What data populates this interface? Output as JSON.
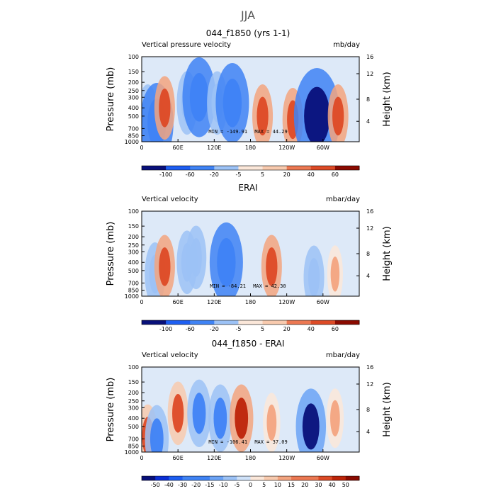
{
  "page_title": "JJA",
  "x_ticks": [
    "0",
    "60E",
    "120E",
    "180",
    "120W",
    "60W"
  ],
  "y_left_ticks": [
    "100",
    "150",
    "200",
    "250",
    "300",
    "400",
    "500",
    "700",
    "850",
    "1000"
  ],
  "y_right_ticks": [
    "16",
    "12",
    "8",
    "4"
  ],
  "y_left_label": "Pressure (mb)",
  "y_right_label": "Height (km)",
  "colors": {
    "palette": [
      "#08107a",
      "#0a2ed6",
      "#1d5ef2",
      "#3f83f5",
      "#6ba3f6",
      "#9cc2f6",
      "#cfe2f9",
      "#fbe7d9",
      "#f8caae",
      "#f3a47f",
      "#ec7852",
      "#dd4a26",
      "#bd2409",
      "#8b0a00"
    ]
  },
  "chart_data": [
    {
      "type": "heatmap",
      "title": "044_f1850 (yrs 1-1)",
      "variable": "Vertical pressure velocity",
      "units": "mb/day",
      "x": [
        "0",
        "60E",
        "120E",
        "180",
        "120W",
        "60W"
      ],
      "y": [
        100,
        150,
        200,
        250,
        300,
        400,
        500,
        700,
        850,
        1000
      ],
      "min_label": "MIN = -149.91",
      "max_label": "MAX = 44.29",
      "min": -149.91,
      "max": 44.29,
      "colorbar_labels": [
        "-100",
        "-60",
        "-20",
        "-5",
        "5",
        "20",
        "40",
        "60"
      ],
      "features": [
        {
          "lon": 10,
          "p": 500,
          "value": -20
        },
        {
          "lon": 25,
          "p": 600,
          "value": -60
        },
        {
          "lon": 38,
          "p": 400,
          "value": 20
        },
        {
          "lon": 75,
          "p": 350,
          "value": -20
        },
        {
          "lon": 95,
          "p": 300,
          "value": -60
        },
        {
          "lon": 125,
          "p": 350,
          "value": -20
        },
        {
          "lon": 150,
          "p": 350,
          "value": -60
        },
        {
          "lon": 200,
          "p": 500,
          "value": 20
        },
        {
          "lon": 250,
          "p": 550,
          "value": 20
        },
        {
          "lon": 290,
          "p": 500,
          "value": -100
        },
        {
          "lon": 325,
          "p": 500,
          "value": 20
        }
      ]
    },
    {
      "type": "heatmap",
      "title": "ERAI",
      "variable": "Vertical velocity",
      "units": "mbar/day",
      "x": [
        "0",
        "60E",
        "120E",
        "180",
        "120W",
        "60W"
      ],
      "y": [
        100,
        150,
        200,
        250,
        300,
        400,
        500,
        700,
        850,
        1000
      ],
      "min_label": "MIN = -84.21",
      "max_label": "MAX = 42.30",
      "min": -84.21,
      "max": 42.3,
      "colorbar_labels": [
        "-100",
        "-60",
        "-20",
        "-5",
        "5",
        "20",
        "40",
        "60"
      ],
      "features": [
        {
          "lon": 22,
          "p": 550,
          "value": -20
        },
        {
          "lon": 38,
          "p": 450,
          "value": 20
        },
        {
          "lon": 75,
          "p": 400,
          "value": -20
        },
        {
          "lon": 90,
          "p": 350,
          "value": -20
        },
        {
          "lon": 140,
          "p": 400,
          "value": -60
        },
        {
          "lon": 215,
          "p": 450,
          "value": 20
        },
        {
          "lon": 285,
          "p": 600,
          "value": -20
        },
        {
          "lon": 320,
          "p": 550,
          "value": 5
        }
      ]
    },
    {
      "type": "heatmap",
      "title": "044_f1850 - ERAI",
      "variable": "Vertical velocity",
      "units": "mbar/day",
      "x": [
        "0",
        "60E",
        "120E",
        "180",
        "120W",
        "60W"
      ],
      "y": [
        100,
        150,
        200,
        250,
        300,
        400,
        500,
        700,
        850,
        1000
      ],
      "min_label": "MIN = -106.41",
      "max_label": "MAX = 37.09",
      "min": -106.41,
      "max": 37.09,
      "colorbar_labels": [
        "-50",
        "-40",
        "-30",
        "-20",
        "-15",
        "-10",
        "-5",
        "0",
        "5",
        "10",
        "15",
        "20",
        "30",
        "40",
        "50"
      ],
      "features": [
        {
          "lon": 10,
          "p": 650,
          "value": 20
        },
        {
          "lon": 25,
          "p": 700,
          "value": -30
        },
        {
          "lon": 60,
          "p": 350,
          "value": 20
        },
        {
          "lon": 95,
          "p": 350,
          "value": -30
        },
        {
          "lon": 130,
          "p": 400,
          "value": -30
        },
        {
          "lon": 165,
          "p": 400,
          "value": 30
        },
        {
          "lon": 215,
          "p": 450,
          "value": 10
        },
        {
          "lon": 280,
          "p": 500,
          "value": -50
        },
        {
          "lon": 320,
          "p": 400,
          "value": 10
        }
      ]
    }
  ]
}
